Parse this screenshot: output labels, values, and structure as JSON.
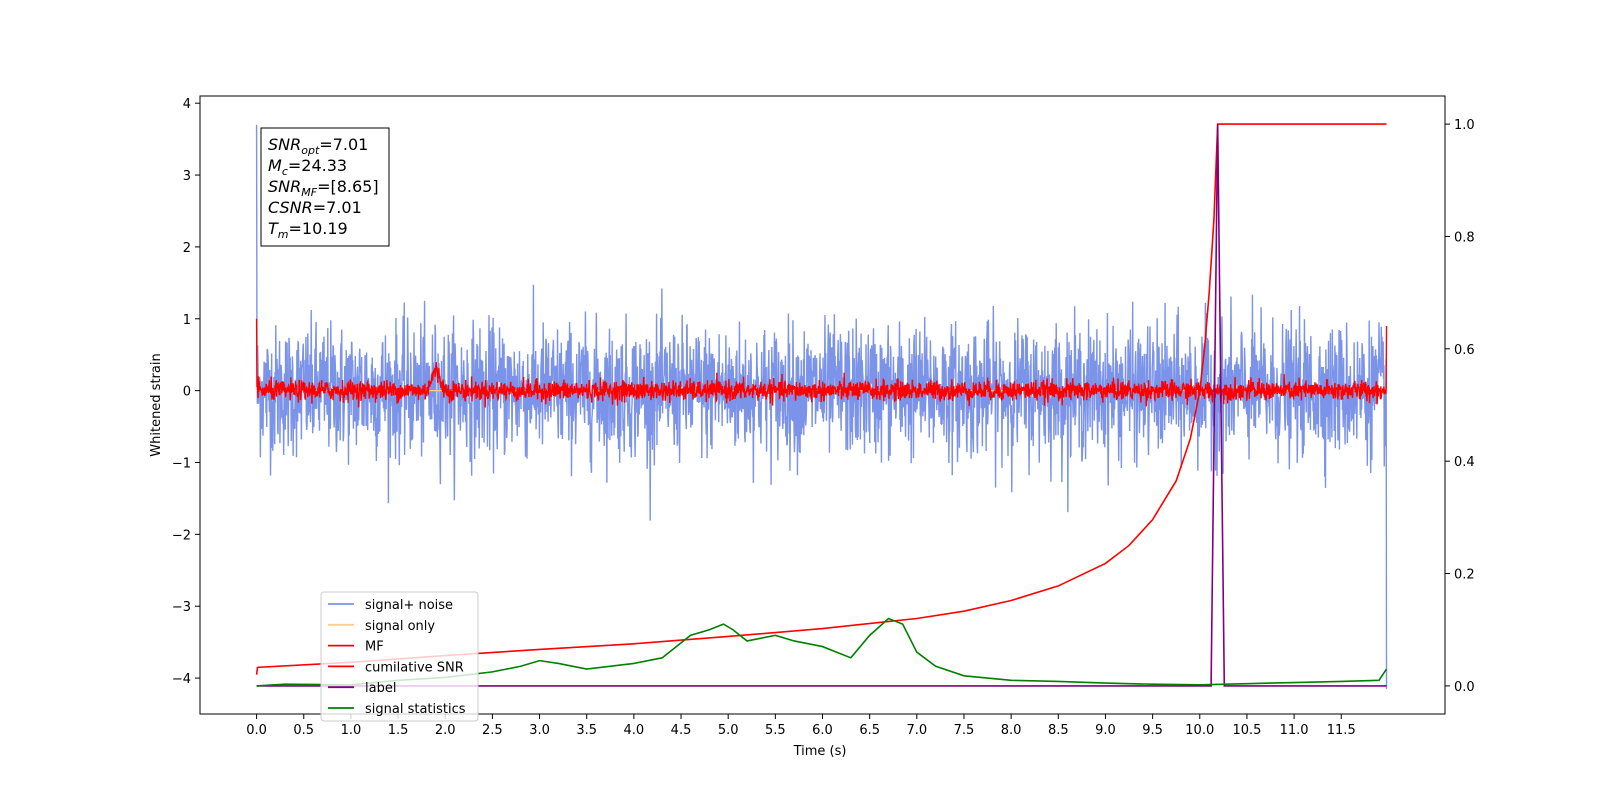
{
  "chart_data": {
    "type": "line",
    "title": "",
    "xlabel": "Time (s)",
    "ylabel": "Whitened strain",
    "xlim": [
      -0.6,
      12.6
    ],
    "ylim_left": [
      -4.5,
      4.1
    ],
    "ylim_right": [
      -0.05,
      1.05
    ],
    "x_ticks": [
      "0.0",
      "0.5",
      "1.0",
      "1.5",
      "2.0",
      "2.5",
      "3.0",
      "3.5",
      "4.0",
      "4.5",
      "5.0",
      "5.5",
      "6.0",
      "6.5",
      "7.0",
      "7.5",
      "8.0",
      "8.5",
      "9.0",
      "9.5",
      "10.0",
      "10.5",
      "11.0",
      "11.5"
    ],
    "y_ticks_left": [
      4,
      3,
      2,
      1,
      0,
      -1,
      -2,
      -3,
      -4
    ],
    "y_ticks_left_labels": [
      "4",
      "3",
      "2",
      "1",
      "0",
      "−1",
      "−2",
      "−3",
      "−4"
    ],
    "y_ticks_right": [
      0.0,
      0.2,
      0.4,
      0.6,
      0.8,
      1.0
    ],
    "y_ticks_right_labels": [
      "0.0",
      "0.2",
      "0.4",
      "0.6",
      "0.8",
      "1.0"
    ],
    "grid": false,
    "legend_position": "lower-left",
    "annotation": [
      {
        "base": "SNR",
        "sub": "opt",
        "rest": "=7.01"
      },
      {
        "base": "M",
        "sub": "c",
        "rest": "=24.33"
      },
      {
        "base": "SNR",
        "sub": "MF",
        "rest": "=[8.65]"
      },
      {
        "base": "CSNR",
        "sub": "",
        "rest": "=7.01"
      },
      {
        "base": "T",
        "sub": "m",
        "rest": "=10.19"
      }
    ],
    "series": [
      {
        "name": "signal+ noise",
        "axis": "left",
        "color": "#7b93e8",
        "style": "noise",
        "amplitude_sd": 0.45,
        "peak_range": [
          -1.9,
          1.75
        ],
        "x_range": [
          0.0,
          11.98
        ]
      },
      {
        "name": "signal only",
        "axis": "left",
        "color": "#f7d08a",
        "style": "flat",
        "x_range": [
          0.0,
          11.98
        ]
      },
      {
        "name": "MF",
        "axis": "left",
        "color": "#ff0000",
        "style": "noise",
        "amplitude_sd": 0.07,
        "x_range": [
          0.0,
          11.98
        ],
        "bump_x": [
          1.8,
          2.0
        ],
        "bump_max": 0.65
      },
      {
        "name": "cumilative SNR",
        "axis": "right",
        "color": "#ff0000",
        "style": "line",
        "x": [
          0.0,
          0.01,
          1.0,
          2.0,
          3.0,
          4.0,
          5.0,
          6.0,
          7.0,
          7.5,
          8.0,
          8.5,
          9.0,
          9.25,
          9.5,
          9.75,
          9.9,
          10.0,
          10.05,
          10.1,
          10.15,
          10.19,
          10.2,
          11.0,
          11.5,
          11.98
        ],
        "y": [
          0.02,
          0.033,
          0.042,
          0.054,
          0.065,
          0.075,
          0.088,
          0.102,
          0.12,
          0.133,
          0.152,
          0.178,
          0.218,
          0.25,
          0.296,
          0.365,
          0.44,
          0.525,
          0.6,
          0.7,
          0.83,
          1.0,
          1.0,
          1.0,
          1.0,
          1.0
        ]
      },
      {
        "name": "label",
        "axis": "right",
        "color": "#800080",
        "style": "line",
        "x": [
          0.0,
          10.12,
          10.19,
          10.26,
          11.98
        ],
        "y": [
          0.0,
          0.0,
          1.0,
          0.0,
          0.0
        ]
      },
      {
        "name": "signal statistics",
        "axis": "right",
        "color": "#008000",
        "style": "line",
        "x": [
          0.0,
          0.3,
          1.0,
          1.5,
          2.0,
          2.5,
          2.8,
          3.0,
          3.2,
          3.5,
          4.0,
          4.3,
          4.6,
          4.8,
          4.95,
          5.05,
          5.2,
          5.5,
          5.7,
          6.0,
          6.3,
          6.5,
          6.7,
          6.85,
          7.0,
          7.2,
          7.5,
          8.0,
          8.5,
          9.0,
          9.5,
          10.0,
          10.5,
          11.0,
          11.5,
          11.9,
          11.98
        ],
        "y": [
          0.0,
          0.003,
          0.002,
          0.01,
          0.015,
          0.025,
          0.035,
          0.045,
          0.04,
          0.03,
          0.04,
          0.05,
          0.09,
          0.1,
          0.11,
          0.1,
          0.08,
          0.09,
          0.08,
          0.07,
          0.05,
          0.09,
          0.12,
          0.11,
          0.06,
          0.035,
          0.018,
          0.01,
          0.008,
          0.005,
          0.003,
          0.002,
          0.004,
          0.006,
          0.008,
          0.01,
          0.03
        ]
      }
    ]
  }
}
